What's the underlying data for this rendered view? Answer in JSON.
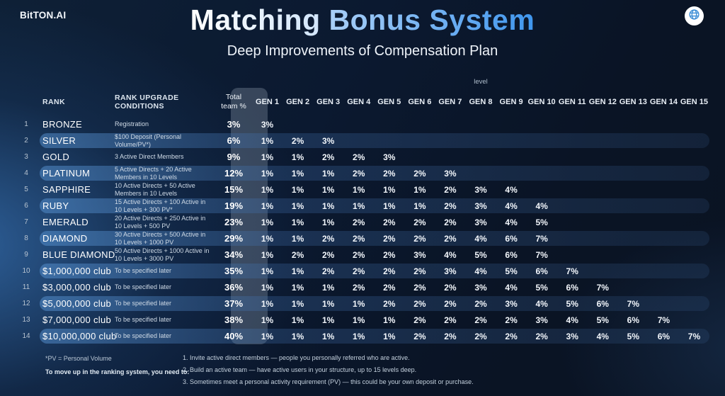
{
  "header": {
    "logo": "BitTON.AI",
    "title_part1": "Matching ",
    "title_part2": "Bonus System",
    "subtitle": "Deep Improvements of Compensation Plan"
  },
  "table": {
    "level_label": "level",
    "columns": {
      "rank": "RANK",
      "conditions": "RANK UPGRADE CONDITIONS",
      "total_line1": "Total",
      "total_line2": "team %"
    },
    "gen_headers": [
      "GEN 1",
      "GEN 2",
      "GEN 3",
      "GEN 4",
      "GEN 5",
      "GEN 6",
      "GEN 7",
      "GEN 8",
      "GEN 9",
      "GEN 10",
      "GEN 11",
      "GEN 12",
      "GEN 13",
      "GEN 14",
      "GEN 15"
    ],
    "rows": [
      {
        "num": "1",
        "rank": "BRONZE",
        "condition": "Registration",
        "total": "3%",
        "highlight": false,
        "gens": [
          "3%"
        ]
      },
      {
        "num": "2",
        "rank": "SILVER",
        "condition": "$100 Deposit (Personal Volume/PV*)",
        "total": "6%",
        "highlight": true,
        "gens": [
          "1%",
          "2%",
          "3%"
        ]
      },
      {
        "num": "3",
        "rank": "GOLD",
        "condition": "3 Active Direct Members",
        "total": "9%",
        "highlight": false,
        "gens": [
          "1%",
          "1%",
          "2%",
          "2%",
          "3%"
        ]
      },
      {
        "num": "4",
        "rank": "PLATINUM",
        "condition": "5 Active Directs + 20 Active Members in 10 Levels",
        "total": "12%",
        "highlight": true,
        "gens": [
          "1%",
          "1%",
          "1%",
          "2%",
          "2%",
          "2%",
          "3%"
        ]
      },
      {
        "num": "5",
        "rank": "SAPPHIRE",
        "condition": "10 Active Directs + 50 Active Members in 10 Levels",
        "total": "15%",
        "highlight": false,
        "gens": [
          "1%",
          "1%",
          "1%",
          "1%",
          "1%",
          "1%",
          "2%",
          "3%",
          "4%"
        ]
      },
      {
        "num": "6",
        "rank": "RUBY",
        "condition": "15 Active Directs + 100 Active in 10 Levels + 300 PV*",
        "total": "19%",
        "highlight": true,
        "gens": [
          "1%",
          "1%",
          "1%",
          "1%",
          "1%",
          "1%",
          "2%",
          "3%",
          "4%",
          "4%"
        ]
      },
      {
        "num": "7",
        "rank": "EMERALD",
        "condition": "20 Active Directs + 250 Active in 10 Levels + 500 PV",
        "total": "23%",
        "highlight": false,
        "gens": [
          "1%",
          "1%",
          "1%",
          "2%",
          "2%",
          "2%",
          "2%",
          "3%",
          "4%",
          "5%"
        ]
      },
      {
        "num": "8",
        "rank": "DIAMOND",
        "condition": "30 Active Directs + 500 Active in 10 Levels + 1000 PV",
        "total": "29%",
        "highlight": true,
        "gens": [
          "1%",
          "1%",
          "2%",
          "2%",
          "2%",
          "2%",
          "2%",
          "4%",
          "6%",
          "7%"
        ]
      },
      {
        "num": "9",
        "rank": "BLUE DIAMOND",
        "condition": "50 Active Directs + 1000 Active in 10 Levels + 3000 PV",
        "total": "34%",
        "highlight": false,
        "gens": [
          "1%",
          "2%",
          "2%",
          "2%",
          "2%",
          "3%",
          "4%",
          "5%",
          "6%",
          "7%"
        ]
      },
      {
        "num": "10",
        "rank": "$1,000,000 club",
        "condition": "To be specified later",
        "total": "35%",
        "highlight": true,
        "gens": [
          "1%",
          "1%",
          "2%",
          "2%",
          "2%",
          "2%",
          "3%",
          "4%",
          "5%",
          "6%",
          "7%"
        ]
      },
      {
        "num": "11",
        "rank": "$3,000,000 club",
        "condition": "To be specified later",
        "total": "36%",
        "highlight": false,
        "gens": [
          "1%",
          "1%",
          "1%",
          "2%",
          "2%",
          "2%",
          "2%",
          "3%",
          "4%",
          "5%",
          "6%",
          "7%"
        ]
      },
      {
        "num": "12",
        "rank": "$5,000,000 club",
        "condition": "To be specified later",
        "total": "37%",
        "highlight": true,
        "gens": [
          "1%",
          "1%",
          "1%",
          "1%",
          "2%",
          "2%",
          "2%",
          "2%",
          "3%",
          "4%",
          "5%",
          "6%",
          "7%"
        ]
      },
      {
        "num": "13",
        "rank": "$7,000,000 club",
        "condition": "To be specified later",
        "total": "38%",
        "highlight": false,
        "gens": [
          "1%",
          "1%",
          "1%",
          "1%",
          "1%",
          "2%",
          "2%",
          "2%",
          "2%",
          "3%",
          "4%",
          "5%",
          "6%",
          "7%"
        ]
      },
      {
        "num": "14",
        "rank": "$10,000,000 club",
        "condition": "To be specified later",
        "total": "40%",
        "highlight": true,
        "gens": [
          "1%",
          "1%",
          "1%",
          "1%",
          "1%",
          "2%",
          "2%",
          "2%",
          "2%",
          "2%",
          "3%",
          "4%",
          "5%",
          "6%",
          "7%"
        ]
      }
    ]
  },
  "footer": {
    "note1": "*PV = Personal Volume",
    "note2": "To move up in the ranking system, you need to:",
    "list": [
      "1. Invite active direct members — people you personally referred who are active.",
      "2. Build an active team — have active users in your structure, up to 15 levels deep.",
      "3. Sometimes meet a personal activity requirement (PV) — this could be your own deposit or purchase."
    ]
  },
  "colors": {
    "background": "#0a1425",
    "accent_blue": "#3f96ee",
    "highlight_row": "rgba(88,148,212,0.5)",
    "total_panel": "rgba(173,186,202,0.28)"
  }
}
